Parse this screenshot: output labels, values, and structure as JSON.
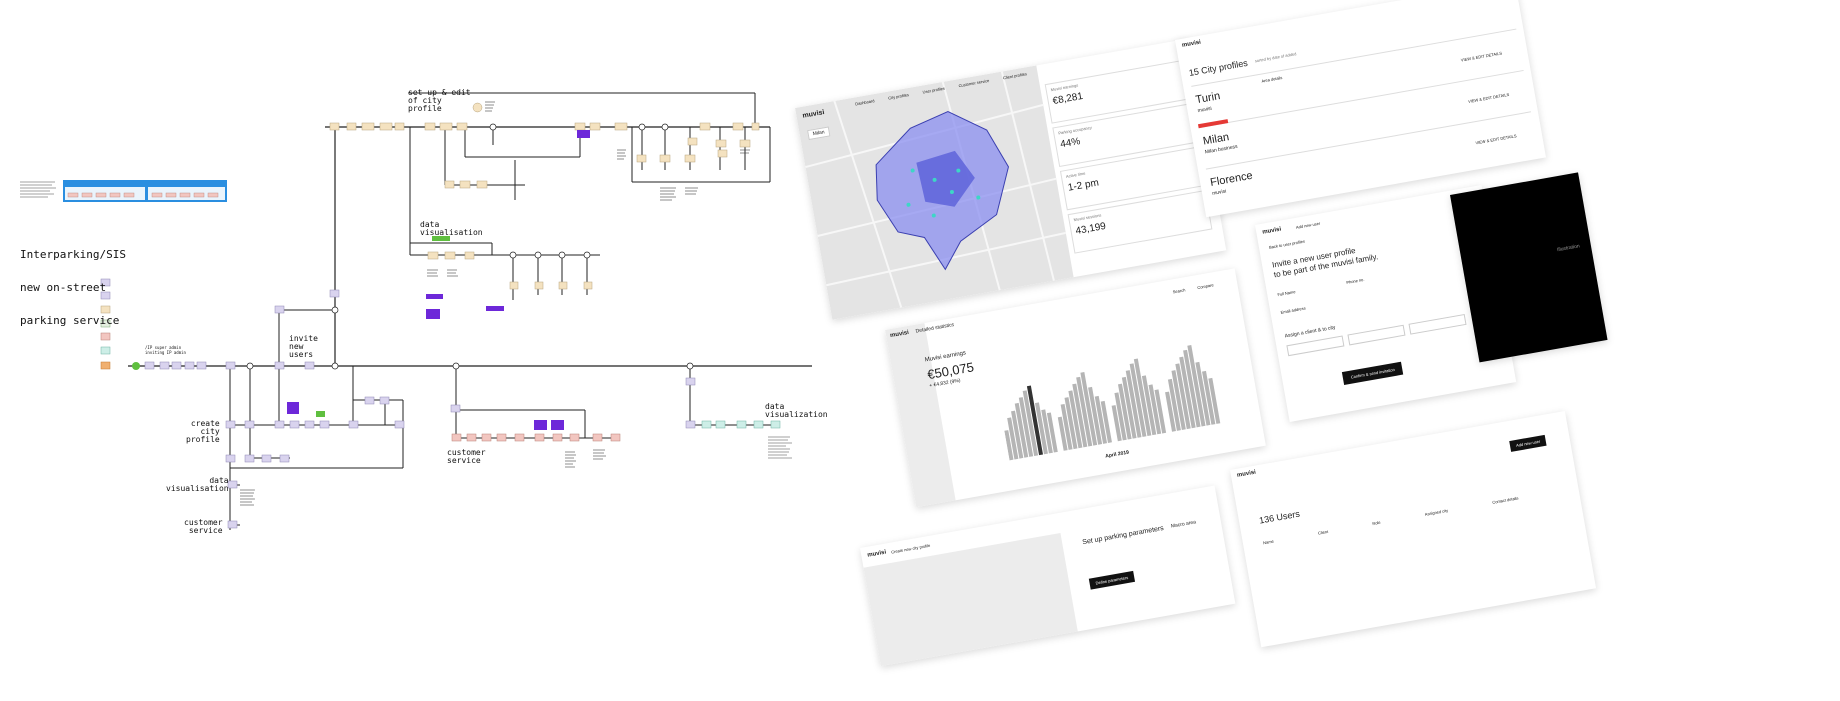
{
  "flowchart": {
    "project_title_line1": "Interparking/SIS",
    "project_title_line2": "new on-street",
    "project_title_line3": "parking service",
    "start_label": "/IP super admin\ninviting IP admin",
    "section_setup_city": "set up & edit\nof city\nprofile",
    "section_data_vis_top": "data\nvisualisation",
    "section_invite_users": "invite\nnew\nusers",
    "section_create_city": "create\ncity\nprofile",
    "section_data_vis_left": "data\nvisualisation",
    "section_customer_service_left": "customer\nservice",
    "section_customer_service_mid": "customer\nservice",
    "section_data_vis_right": "data\nvisualization",
    "colors": {
      "beige": "#f4e2c0",
      "lavender": "#d9d3ee",
      "pink": "#f2c6c0",
      "mint": "#cdeee7",
      "blue_panel": "#2a8ee0",
      "purple_note": "#6d28d9",
      "green_note": "#5fbf3f",
      "line": "#222222"
    }
  },
  "mockups": {
    "brand": "muvisi",
    "map_screen": {
      "tabs": [
        "Dashboard",
        "City profiles",
        "User profiles",
        "Customer service",
        "Client profiles"
      ],
      "city_select": "Milan",
      "stats": [
        {
          "label": "Muvisi earnings",
          "value": "€8,281"
        },
        {
          "label": "Parking occupancy",
          "value": "44%"
        },
        {
          "label": "Active time",
          "value": "1-2 pm"
        },
        {
          "label": "Muvisi sessions",
          "value": "43,199"
        }
      ]
    },
    "city_profiles": {
      "heading": "15 City profiles",
      "sort": "sorted by date of added",
      "cities": [
        {
          "name": "Turin",
          "sub": "muvisi"
        },
        {
          "name": "Milan",
          "sub": "Milan business"
        },
        {
          "name": "Florence",
          "sub": "muvisi"
        }
      ],
      "area_details": "Area details",
      "view_edit": "VIEW & EDIT DETAILS"
    },
    "earnings_screen": {
      "tab": "Detailed statistics",
      "title": "Muvisi earnings",
      "value": "€50,075",
      "delta": "+ €4,832 (9%)",
      "month": "April 2019",
      "search": "Search",
      "compare": "Compare",
      "weeks": [
        [
          30,
          42,
          48,
          55,
          60,
          66,
          70,
          52,
          44,
          40
        ],
        [
          34,
          46,
          52,
          58,
          64,
          70,
          74,
          58,
          48,
          42
        ],
        [
          36,
          48,
          56,
          62,
          68,
          74,
          78,
          60,
          50,
          44
        ],
        [
          40,
          52,
          60,
          66,
          72,
          78,
          82,
          64,
          54,
          46
        ]
      ]
    },
    "invite_screen": {
      "back": "Back to user profiles",
      "crumb": "Add new user",
      "heading_line1": "Invite a new user profile",
      "heading_line2": "to be part of the muvisi family.",
      "fields": [
        "Full Name",
        "Email address",
        "Phone no.",
        "Assign a client & to city"
      ],
      "button": "Confirm & send invitation"
    },
    "users_screen": {
      "heading": "136 Users",
      "add_button": "Add new user",
      "columns": [
        "Name",
        "Client",
        "Role",
        "Assigned city",
        "Contact details"
      ]
    },
    "parking_params": {
      "crumb": "Create new city profile",
      "heading": "Set up parking parameters",
      "macro_area": "Macro area",
      "button": "Define parameters"
    },
    "dark_panel_text": "Illustration"
  }
}
